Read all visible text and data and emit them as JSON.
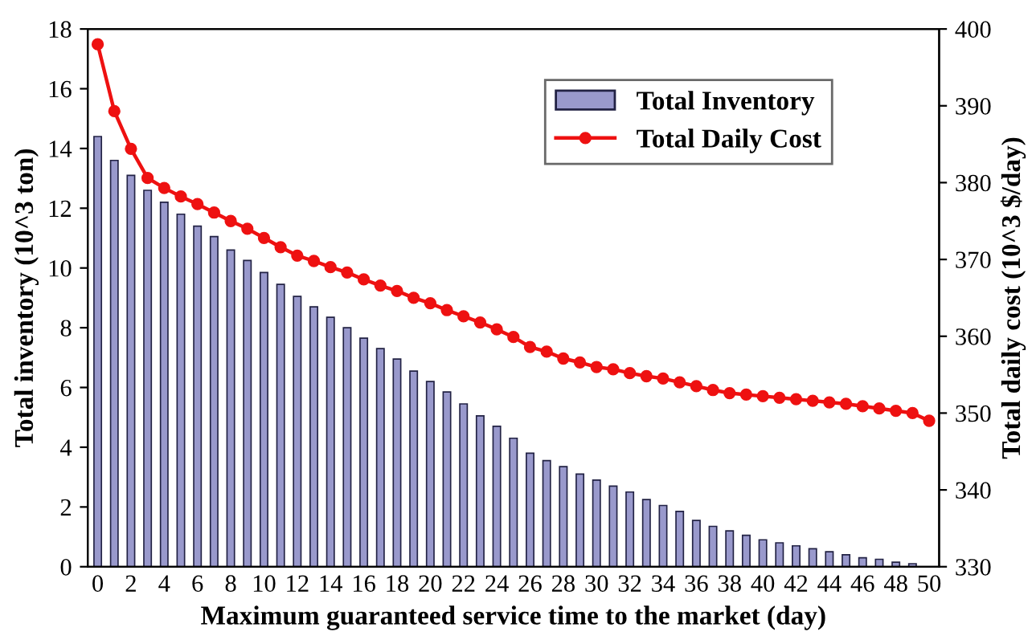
{
  "chart_data": {
    "type": "bar",
    "xlabel": "Maximum guaranteed service time to the market (day)",
    "ylabel": "Total inventory (10^3 ton)",
    "y2label": "Total daily cost (10^3 $/day)",
    "categories": [
      "0",
      null,
      "2",
      null,
      "4",
      null,
      "6",
      null,
      "8",
      null,
      "10",
      null,
      "12",
      null,
      "14",
      null,
      "16",
      null,
      "18",
      null,
      "20",
      null,
      "22",
      null,
      "24",
      null,
      "26",
      null,
      "28",
      null,
      "30",
      null,
      "32",
      null,
      "34",
      null,
      "36",
      null,
      "38",
      null,
      "40",
      null,
      "42",
      null,
      "44",
      null,
      "46",
      null,
      "48",
      null,
      "50"
    ],
    "series": [
      {
        "name": "Total Inventory",
        "color": "#9999cc",
        "values": [
          14.4,
          13.6,
          13.1,
          12.6,
          12.2,
          11.8,
          11.4,
          11.05,
          10.6,
          10.25,
          9.85,
          9.45,
          9.05,
          8.7,
          8.35,
          8.0,
          7.65,
          7.3,
          6.95,
          6.55,
          6.2,
          5.85,
          5.45,
          5.05,
          4.7,
          4.3,
          3.8,
          3.55,
          3.35,
          3.1,
          2.9,
          2.7,
          2.5,
          2.25,
          2.05,
          1.85,
          1.55,
          1.35,
          1.2,
          1.05,
          0.9,
          0.8,
          0.7,
          0.6,
          0.5,
          0.4,
          0.3,
          0.25,
          0.15,
          0.1,
          null
        ]
      },
      {
        "name": "Total Daily Cost",
        "type": "line",
        "axis": "y2",
        "color": "#ee1111",
        "marker": "circle",
        "values": [
          398.0,
          389.3,
          384.4,
          380.6,
          379.3,
          378.2,
          377.2,
          376.1,
          375.0,
          374.0,
          372.8,
          371.6,
          370.5,
          369.8,
          369.0,
          368.3,
          367.4,
          366.6,
          365.9,
          365.0,
          364.3,
          363.4,
          362.6,
          361.8,
          360.9,
          359.9,
          358.6,
          358.0,
          357.1,
          356.6,
          356.0,
          355.7,
          355.2,
          354.8,
          354.5,
          354.0,
          353.5,
          353.0,
          352.6,
          352.4,
          352.2,
          352.0,
          351.8,
          351.6,
          351.4,
          351.2,
          350.9,
          350.6,
          350.3,
          350.0,
          349.0
        ]
      }
    ],
    "ylim": [
      0,
      18
    ],
    "yticks": [
      0,
      2,
      4,
      6,
      8,
      10,
      12,
      14,
      16,
      18
    ],
    "y2lim": [
      330,
      400
    ],
    "y2ticks": [
      330,
      340,
      350,
      360,
      370,
      380,
      390,
      400
    ],
    "legend": "top right",
    "grid": false
  }
}
